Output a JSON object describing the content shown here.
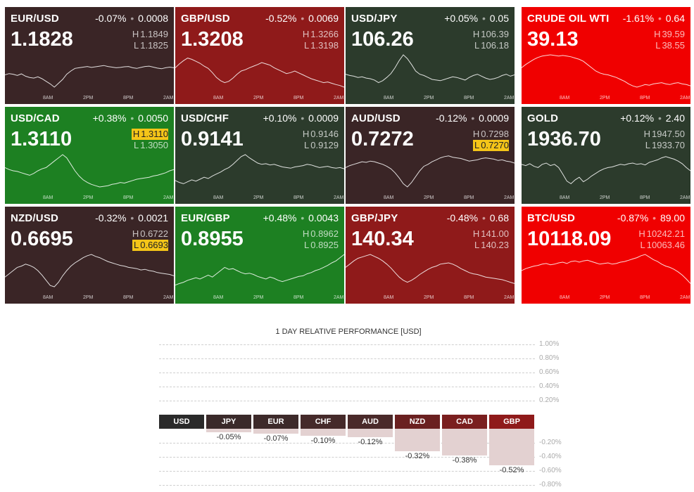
{
  "colors": {
    "dark_red": "#3a2526",
    "red": "#8f1a1a",
    "dark_green": "#2c3b2c",
    "green": "#1d8022",
    "bright_red": "#f00000"
  },
  "tiles": [
    {
      "symbol": "EUR/USD",
      "change": "-0.07%",
      "change_abs": "0.0008",
      "price": "1.1828",
      "high": "1.1849",
      "low": "1.1825",
      "color": "dark_red",
      "high_flag": false,
      "low_flag": false,
      "series": [
        0.62,
        0.58,
        0.6,
        0.64,
        0.59,
        0.66,
        0.7,
        0.72,
        0.68,
        0.74,
        0.82,
        0.9,
        1.0,
        0.88,
        0.76,
        0.6,
        0.5,
        0.42,
        0.4,
        0.38,
        0.36,
        0.39,
        0.37,
        0.35,
        0.33,
        0.36,
        0.38,
        0.4,
        0.39,
        0.37,
        0.36,
        0.4,
        0.42,
        0.39,
        0.36,
        0.35,
        0.38,
        0.41,
        0.43,
        0.4,
        0.38,
        0.4
      ]
    },
    {
      "symbol": "GBP/USD",
      "change": "-0.52%",
      "change_abs": "0.0069",
      "price": "1.3208",
      "high": "1.3266",
      "low": "1.3198",
      "color": "red",
      "high_flag": false,
      "low_flag": false,
      "series": [
        0.4,
        0.28,
        0.18,
        0.1,
        0.14,
        0.2,
        0.26,
        0.35,
        0.42,
        0.55,
        0.7,
        0.8,
        0.86,
        0.82,
        0.72,
        0.6,
        0.5,
        0.46,
        0.4,
        0.35,
        0.3,
        0.24,
        0.28,
        0.32,
        0.4,
        0.46,
        0.52,
        0.58,
        0.55,
        0.5,
        0.56,
        0.62,
        0.68,
        0.74,
        0.78,
        0.82,
        0.86,
        0.84,
        0.88,
        0.92,
        0.95,
        1.0
      ]
    },
    {
      "symbol": "USD/JPY",
      "change": "+0.05%",
      "change_abs": "0.05",
      "price": "106.26",
      "high": "106.39",
      "low": "106.18",
      "color": "dark_green",
      "high_flag": false,
      "low_flag": false,
      "series": [
        0.6,
        0.64,
        0.66,
        0.7,
        0.68,
        0.72,
        0.74,
        0.78,
        0.86,
        0.8,
        0.7,
        0.58,
        0.4,
        0.18,
        0.0,
        0.12,
        0.3,
        0.5,
        0.6,
        0.64,
        0.7,
        0.76,
        0.78,
        0.8,
        0.76,
        0.72,
        0.68,
        0.7,
        0.74,
        0.78,
        0.7,
        0.64,
        0.6,
        0.66,
        0.72,
        0.76,
        0.74,
        0.7,
        0.64,
        0.6,
        0.66,
        0.62
      ]
    },
    {
      "symbol": "CRUDE OIL WTI",
      "change": "-1.61%",
      "change_abs": "0.64",
      "price": "39.13",
      "high": "39.59",
      "low": "38.55",
      "color": "bright_red",
      "high_flag": false,
      "low_flag": false,
      "series": [
        0.4,
        0.3,
        0.22,
        0.14,
        0.08,
        0.04,
        0.02,
        0.0,
        0.02,
        0.04,
        0.02,
        0.04,
        0.06,
        0.1,
        0.14,
        0.2,
        0.3,
        0.4,
        0.5,
        0.56,
        0.6,
        0.62,
        0.66,
        0.7,
        0.76,
        0.82,
        0.9,
        0.96,
        1.0,
        0.96,
        0.92,
        0.94,
        0.9,
        0.88,
        0.86,
        0.9,
        0.92,
        0.88,
        0.86,
        0.9,
        0.92,
        0.96
      ]
    },
    {
      "symbol": "USD/CAD",
      "change": "+0.38%",
      "change_abs": "0.0050",
      "price": "1.3110",
      "high": "1.3110",
      "low": "1.3050",
      "color": "green",
      "high_flag": true,
      "low_flag": false,
      "series": [
        0.4,
        0.46,
        0.5,
        0.52,
        0.56,
        0.6,
        0.64,
        0.58,
        0.5,
        0.44,
        0.4,
        0.3,
        0.2,
        0.1,
        0.0,
        0.1,
        0.3,
        0.5,
        0.66,
        0.78,
        0.86,
        0.92,
        0.96,
        1.0,
        0.98,
        0.96,
        0.92,
        0.9,
        0.86,
        0.88,
        0.84,
        0.8,
        0.76,
        0.74,
        0.72,
        0.7,
        0.66,
        0.64,
        0.6,
        0.56,
        0.5,
        0.46
      ]
    },
    {
      "symbol": "USD/CHF",
      "change": "+0.10%",
      "change_abs": "0.0009",
      "price": "0.9141",
      "high": "0.9146",
      "low": "0.9129",
      "color": "dark_green",
      "high_flag": false,
      "low_flag": false,
      "series": [
        0.8,
        0.86,
        0.9,
        0.84,
        0.78,
        0.82,
        0.76,
        0.7,
        0.74,
        0.66,
        0.6,
        0.54,
        0.46,
        0.4,
        0.3,
        0.18,
        0.06,
        0.0,
        0.1,
        0.18,
        0.26,
        0.3,
        0.28,
        0.32,
        0.3,
        0.34,
        0.38,
        0.4,
        0.42,
        0.38,
        0.36,
        0.34,
        0.3,
        0.32,
        0.36,
        0.4,
        0.38,
        0.36,
        0.4,
        0.42,
        0.4,
        0.44
      ]
    },
    {
      "symbol": "AUD/USD",
      "change": "-0.12%",
      "change_abs": "0.0009",
      "price": "0.7272",
      "high": "0.7298",
      "low": "0.7270",
      "color": "dark_red",
      "high_flag": false,
      "low_flag": true,
      "series": [
        0.4,
        0.34,
        0.3,
        0.26,
        0.22,
        0.24,
        0.2,
        0.22,
        0.26,
        0.3,
        0.36,
        0.44,
        0.56,
        0.72,
        0.9,
        1.0,
        0.86,
        0.68,
        0.5,
        0.36,
        0.3,
        0.22,
        0.16,
        0.1,
        0.06,
        0.04,
        0.08,
        0.1,
        0.12,
        0.16,
        0.2,
        0.18,
        0.16,
        0.12,
        0.1,
        0.12,
        0.14,
        0.18,
        0.16,
        0.2,
        0.22,
        0.26
      ]
    },
    {
      "symbol": "GOLD",
      "change": "+0.12%",
      "change_abs": "2.40",
      "price": "1936.70",
      "high": "1947.50",
      "low": "1933.70",
      "color": "dark_green",
      "high_flag": false,
      "low_flag": false,
      "series": [
        0.3,
        0.34,
        0.28,
        0.36,
        0.4,
        0.3,
        0.26,
        0.34,
        0.3,
        0.4,
        0.6,
        0.82,
        0.9,
        0.78,
        0.7,
        0.84,
        0.76,
        0.66,
        0.58,
        0.5,
        0.44,
        0.4,
        0.38,
        0.34,
        0.3,
        0.32,
        0.28,
        0.26,
        0.3,
        0.28,
        0.32,
        0.24,
        0.2,
        0.16,
        0.1,
        0.06,
        0.1,
        0.14,
        0.2,
        0.28,
        0.4,
        0.5
      ]
    },
    {
      "symbol": "NZD/USD",
      "change": "-0.32%",
      "change_abs": "0.0021",
      "price": "0.6695",
      "high": "0.6722",
      "low": "0.6693",
      "color": "dark_red",
      "high_flag": false,
      "low_flag": true,
      "series": [
        0.7,
        0.6,
        0.5,
        0.4,
        0.36,
        0.3,
        0.34,
        0.4,
        0.5,
        0.64,
        0.8,
        0.96,
        1.0,
        0.86,
        0.66,
        0.5,
        0.36,
        0.26,
        0.18,
        0.1,
        0.04,
        0.0,
        0.06,
        0.1,
        0.16,
        0.22,
        0.26,
        0.3,
        0.34,
        0.36,
        0.4,
        0.42,
        0.44,
        0.48,
        0.46,
        0.5,
        0.52,
        0.56,
        0.58,
        0.6,
        0.62,
        0.66
      ]
    },
    {
      "symbol": "EUR/GBP",
      "change": "+0.48%",
      "change_abs": "0.0043",
      "price": "0.8955",
      "high": "0.8962",
      "low": "0.8925",
      "color": "green",
      "high_flag": false,
      "low_flag": false,
      "series": [
        0.95,
        0.9,
        0.86,
        0.8,
        0.76,
        0.72,
        0.76,
        0.7,
        0.64,
        0.7,
        0.6,
        0.5,
        0.4,
        0.46,
        0.44,
        0.5,
        0.56,
        0.6,
        0.58,
        0.62,
        0.68,
        0.72,
        0.76,
        0.7,
        0.74,
        0.8,
        0.84,
        0.8,
        0.76,
        0.72,
        0.68,
        0.66,
        0.6,
        0.56,
        0.5,
        0.46,
        0.4,
        0.34,
        0.26,
        0.2,
        0.1,
        0.0
      ]
    },
    {
      "symbol": "GBP/JPY",
      "change": "-0.48%",
      "change_abs": "0.68",
      "price": "140.34",
      "high": "141.00",
      "low": "140.23",
      "color": "red",
      "high_flag": false,
      "low_flag": false,
      "series": [
        0.4,
        0.3,
        0.2,
        0.12,
        0.08,
        0.04,
        0.0,
        0.06,
        0.12,
        0.2,
        0.3,
        0.42,
        0.56,
        0.7,
        0.8,
        0.86,
        0.8,
        0.72,
        0.62,
        0.54,
        0.46,
        0.4,
        0.36,
        0.3,
        0.28,
        0.26,
        0.3,
        0.36,
        0.44,
        0.5,
        0.56,
        0.6,
        0.62,
        0.66,
        0.7,
        0.72,
        0.74,
        0.76,
        0.78,
        0.82,
        0.86,
        0.9
      ]
    },
    {
      "symbol": "BTC/USD",
      "change": "-0.87%",
      "change_abs": "89.00",
      "price": "10118.09",
      "high": "10242.21",
      "low": "10063.46",
      "color": "bright_red",
      "high_flag": false,
      "low_flag": false,
      "series": [
        0.5,
        0.44,
        0.4,
        0.36,
        0.34,
        0.3,
        0.28,
        0.32,
        0.3,
        0.26,
        0.24,
        0.28,
        0.22,
        0.2,
        0.24,
        0.2,
        0.18,
        0.22,
        0.26,
        0.3,
        0.28,
        0.26,
        0.3,
        0.28,
        0.24,
        0.22,
        0.18,
        0.14,
        0.1,
        0.04,
        0.0,
        0.08,
        0.16,
        0.22,
        0.3,
        0.36,
        0.4,
        0.46,
        0.54,
        0.64,
        0.76,
        0.9
      ]
    }
  ],
  "time_labels": [
    "8AM",
    "2PM",
    "8PM",
    "2AM"
  ],
  "performance": {
    "title": "1 DAY RELATIVE PERFORMANCE  [USD]",
    "y_labels_pos": [
      "1.00%",
      "0.80%",
      "0.60%",
      "0.40%",
      "0.20%"
    ],
    "y_labels_neg": [
      "-0.20%",
      "-0.40%",
      "-0.60%",
      "-0.80%"
    ],
    "currencies": [
      {
        "code": "USD",
        "value": "",
        "pct": 0
      },
      {
        "code": "JPY",
        "value": "-0.05%",
        "pct": -0.05
      },
      {
        "code": "EUR",
        "value": "-0.07%",
        "pct": -0.07
      },
      {
        "code": "CHF",
        "value": "-0.10%",
        "pct": -0.1
      },
      {
        "code": "AUD",
        "value": "-0.12%",
        "pct": -0.12
      },
      {
        "code": "NZD",
        "value": "-0.32%",
        "pct": -0.32
      },
      {
        "code": "CAD",
        "value": "-0.38%",
        "pct": -0.38
      },
      {
        "code": "GBP",
        "value": "-0.52%",
        "pct": -0.52
      }
    ],
    "head_colors": [
      "#2a2a2a",
      "#3a2a2a",
      "#3d2a2a",
      "#452a2a",
      "#4a2a2a",
      "#6a2020",
      "#7a1e1e",
      "#8f1a1a"
    ]
  }
}
